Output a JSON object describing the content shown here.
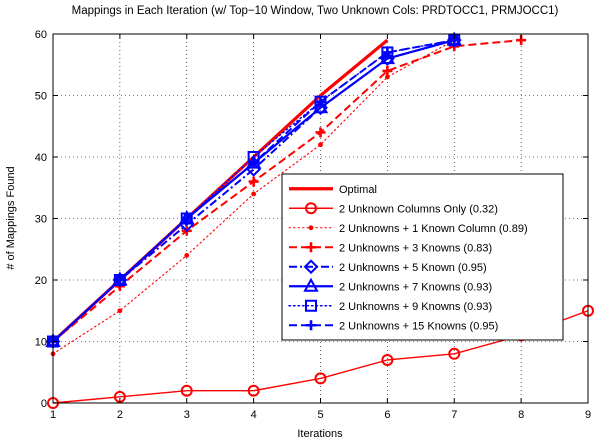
{
  "chart_data": {
    "type": "line",
    "title": "Mappings in Each Iteration (w/ Top−10 Window, Two Unknown Cols: PRDTOCC1, PRMJOCC1)",
    "xlabel": "Iterations",
    "ylabel": "# of Mappings Found",
    "xlim": [
      1,
      9
    ],
    "ylim": [
      0,
      60
    ],
    "xticks": [
      1,
      2,
      3,
      4,
      5,
      6,
      7,
      8,
      9
    ],
    "yticks": [
      0,
      10,
      20,
      30,
      40,
      50,
      60
    ],
    "grid": true,
    "legend_position": "right",
    "series": [
      {
        "name": "Optimal",
        "color": "#ff0000",
        "line": "solid",
        "marker": "none",
        "width": 3.2,
        "points": [
          [
            1,
            10
          ],
          [
            2,
            20
          ],
          [
            3,
            30
          ],
          [
            4,
            40
          ],
          [
            5,
            50
          ],
          [
            6,
            59
          ]
        ]
      },
      {
        "name": "2 Unknown Columns Only (0.32)",
        "color": "#ff0000",
        "line": "solid",
        "marker": "circle",
        "width": 1.4,
        "points": [
          [
            1,
            0
          ],
          [
            2,
            1
          ],
          [
            3,
            2
          ],
          [
            4,
            2
          ],
          [
            5,
            4
          ],
          [
            6,
            7
          ],
          [
            7,
            8
          ],
          [
            8,
            11
          ],
          [
            9,
            15
          ]
        ]
      },
      {
        "name": "2 Unknowns + 1 Known Column (0.89)",
        "color": "#ff0000",
        "line": "dotted",
        "marker": "point",
        "width": 1.1,
        "points": [
          [
            1,
            8
          ],
          [
            2,
            15
          ],
          [
            3,
            24
          ],
          [
            4,
            34
          ],
          [
            5,
            42
          ],
          [
            6,
            53
          ],
          [
            7,
            59
          ]
        ]
      },
      {
        "name": "2 Unknowns + 3 Knowns (0.83)",
        "color": "#ff0000",
        "line": "dashed",
        "marker": "plus",
        "width": 2.0,
        "points": [
          [
            1,
            10
          ],
          [
            2,
            19
          ],
          [
            3,
            28
          ],
          [
            4,
            36
          ],
          [
            5,
            44
          ],
          [
            6,
            54
          ],
          [
            7,
            58
          ],
          [
            8,
            59
          ]
        ]
      },
      {
        "name": "2 Unknowns + 5 Known (0.95)",
        "color": "#0000ff",
        "line": "dashdot",
        "marker": "diamond",
        "width": 2.0,
        "points": [
          [
            1,
            10
          ],
          [
            2,
            20
          ],
          [
            3,
            29
          ],
          [
            4,
            38
          ],
          [
            5,
            48
          ],
          [
            6,
            56
          ],
          [
            7,
            59
          ]
        ]
      },
      {
        "name": "2 Unknowns + 7 Knowns (0.93)",
        "color": "#0000ff",
        "line": "solid",
        "marker": "triangle",
        "width": 2.2,
        "points": [
          [
            1,
            10
          ],
          [
            2,
            20
          ],
          [
            3,
            30
          ],
          [
            4,
            39
          ],
          [
            5,
            48
          ],
          [
            6,
            56
          ],
          [
            7,
            59
          ]
        ]
      },
      {
        "name": "2 Unknowns + 9 Knowns (0.93)",
        "color": "#0000ff",
        "line": "dotted",
        "marker": "square",
        "width": 1.4,
        "points": [
          [
            1,
            10
          ],
          [
            2,
            20
          ],
          [
            3,
            30
          ],
          [
            4,
            40
          ],
          [
            5,
            49
          ],
          [
            6,
            57
          ],
          [
            7,
            59
          ]
        ]
      },
      {
        "name": "2 Unknowns + 15 Knowns (0.95)",
        "color": "#0000ff",
        "line": "dashed",
        "marker": "plus",
        "width": 2.0,
        "points": [
          [
            1,
            10
          ],
          [
            2,
            20
          ],
          [
            3,
            30
          ],
          [
            4,
            39
          ],
          [
            5,
            49
          ],
          [
            6,
            57
          ],
          [
            7,
            59
          ]
        ]
      }
    ]
  }
}
